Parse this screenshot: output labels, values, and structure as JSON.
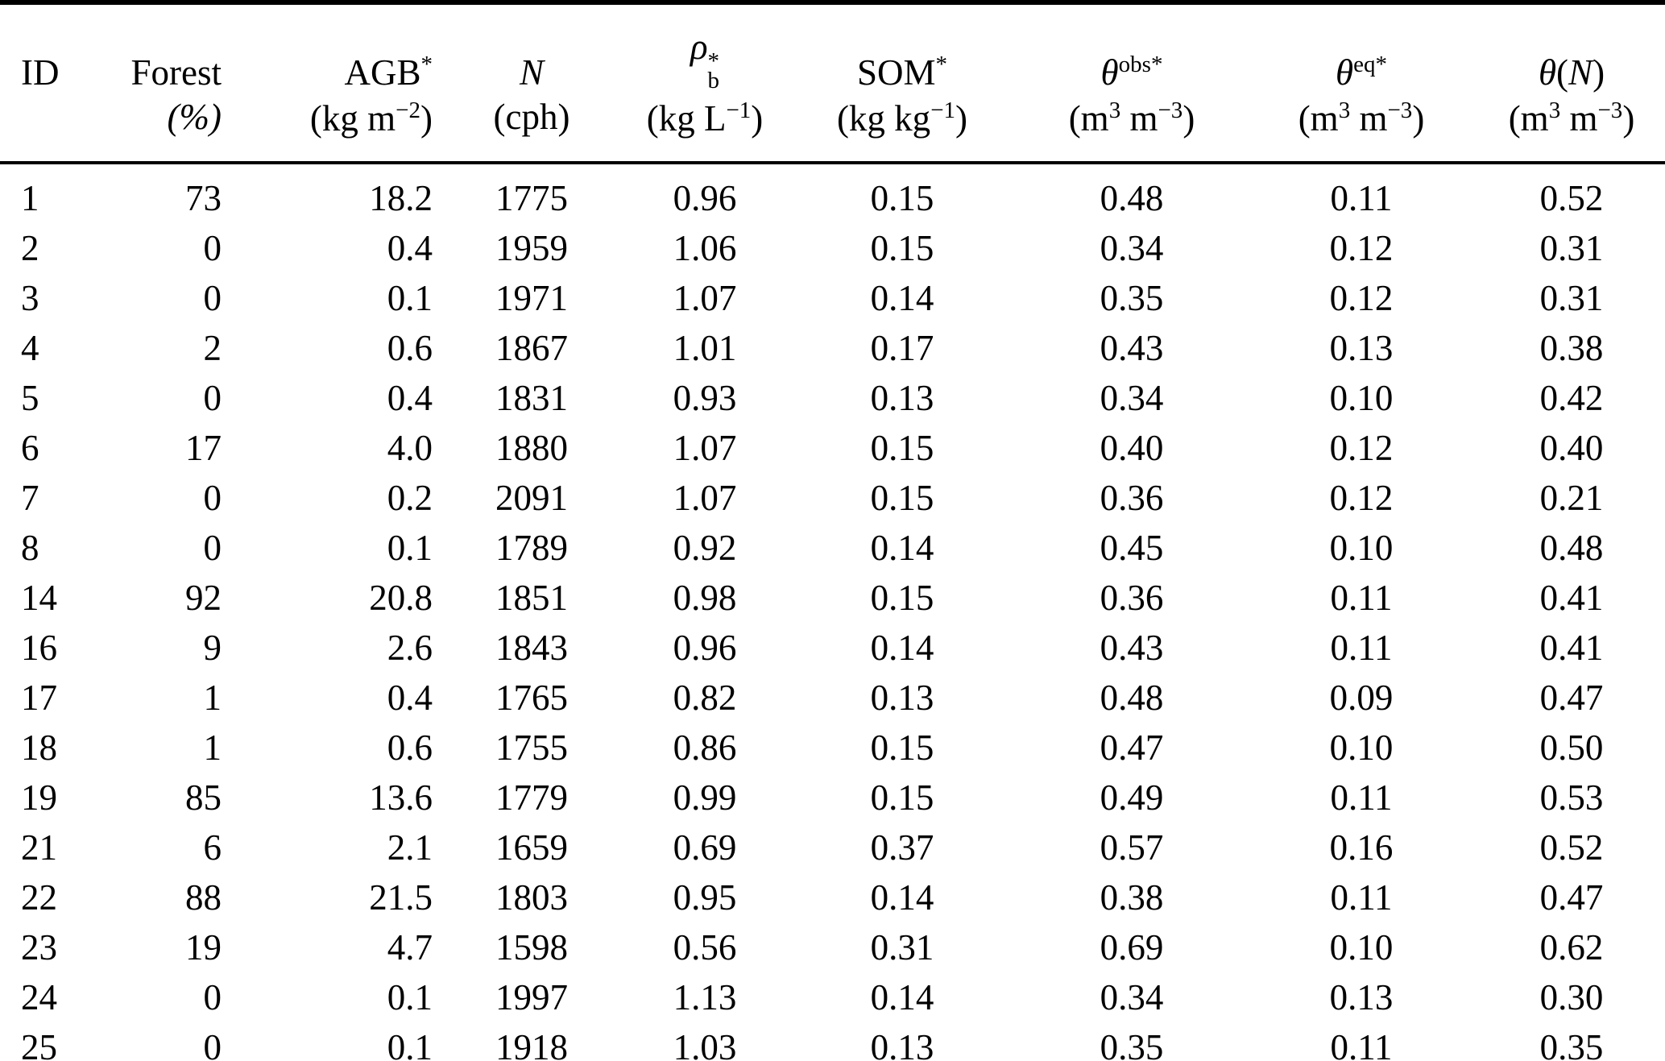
{
  "table": {
    "header": {
      "id": {
        "label": "ID"
      },
      "forest": {
        "label": "Forest",
        "unit": "(%)"
      },
      "agb": {
        "label": "AGB",
        "label_sup": "*",
        "unit_pre": "(kg m",
        "unit_sup": "−2",
        "unit_post": ")"
      },
      "n": {
        "label": "N",
        "unit": "(cph)"
      },
      "rho": {
        "label": "ρ",
        "sup": "*",
        "sub": "b",
        "unit_pre": "(kg L",
        "unit_sup": "−1",
        "unit_post": ")"
      },
      "som": {
        "label": "SOM",
        "label_sup": "*",
        "unit_pre": "(kg kg",
        "unit_sup": "−1",
        "unit_post": ")"
      },
      "theta_obs": {
        "label": "θ",
        "label_sup": "obs*",
        "unit_pre": "(m",
        "unit_sup_a": "3",
        "unit_mid": " m",
        "unit_sup_b": "−3",
        "unit_post": ")"
      },
      "theta_eq": {
        "label": "θ",
        "label_sup": "eq*",
        "unit_pre": "(m",
        "unit_sup_a": "3",
        "unit_mid": " m",
        "unit_sup_b": "−3",
        "unit_post": ")"
      },
      "theta_n": {
        "label_pre": "θ",
        "paren_open": "(",
        "label_var": "N",
        "paren_close": ")",
        "unit_pre": "(m",
        "unit_sup_a": "3",
        "unit_mid": " m",
        "unit_sup_b": "−3",
        "unit_post": ")"
      }
    },
    "rows": [
      [
        "1",
        "73",
        "18.2",
        "1775",
        "0.96",
        "0.15",
        "0.48",
        "0.11",
        "0.52"
      ],
      [
        "2",
        "0",
        "0.4",
        "1959",
        "1.06",
        "0.15",
        "0.34",
        "0.12",
        "0.31"
      ],
      [
        "3",
        "0",
        "0.1",
        "1971",
        "1.07",
        "0.14",
        "0.35",
        "0.12",
        "0.31"
      ],
      [
        "4",
        "2",
        "0.6",
        "1867",
        "1.01",
        "0.17",
        "0.43",
        "0.13",
        "0.38"
      ],
      [
        "5",
        "0",
        "0.4",
        "1831",
        "0.93",
        "0.13",
        "0.34",
        "0.10",
        "0.42"
      ],
      [
        "6",
        "17",
        "4.0",
        "1880",
        "1.07",
        "0.15",
        "0.40",
        "0.12",
        "0.40"
      ],
      [
        "7",
        "0",
        "0.2",
        "2091",
        "1.07",
        "0.15",
        "0.36",
        "0.12",
        "0.21"
      ],
      [
        "8",
        "0",
        "0.1",
        "1789",
        "0.92",
        "0.14",
        "0.45",
        "0.10",
        "0.48"
      ],
      [
        "14",
        "92",
        "20.8",
        "1851",
        "0.98",
        "0.15",
        "0.36",
        "0.11",
        "0.41"
      ],
      [
        "16",
        "9",
        "2.6",
        "1843",
        "0.96",
        "0.14",
        "0.43",
        "0.11",
        "0.41"
      ],
      [
        "17",
        "1",
        "0.4",
        "1765",
        "0.82",
        "0.13",
        "0.48",
        "0.09",
        "0.47"
      ],
      [
        "18",
        "1",
        "0.6",
        "1755",
        "0.86",
        "0.15",
        "0.47",
        "0.10",
        "0.50"
      ],
      [
        "19",
        "85",
        "13.6",
        "1779",
        "0.99",
        "0.15",
        "0.49",
        "0.11",
        "0.53"
      ],
      [
        "21",
        "6",
        "2.1",
        "1659",
        "0.69",
        "0.37",
        "0.57",
        "0.16",
        "0.52"
      ],
      [
        "22",
        "88",
        "21.5",
        "1803",
        "0.95",
        "0.14",
        "0.38",
        "0.11",
        "0.47"
      ],
      [
        "23",
        "19",
        "4.7",
        "1598",
        "0.56",
        "0.31",
        "0.69",
        "0.10",
        "0.62"
      ],
      [
        "24",
        "0",
        "0.1",
        "1997",
        "1.13",
        "0.14",
        "0.34",
        "0.13",
        "0.30"
      ],
      [
        "25",
        "0",
        "0.1",
        "1918",
        "1.03",
        "0.13",
        "0.35",
        "0.11",
        "0.35"
      ]
    ]
  }
}
